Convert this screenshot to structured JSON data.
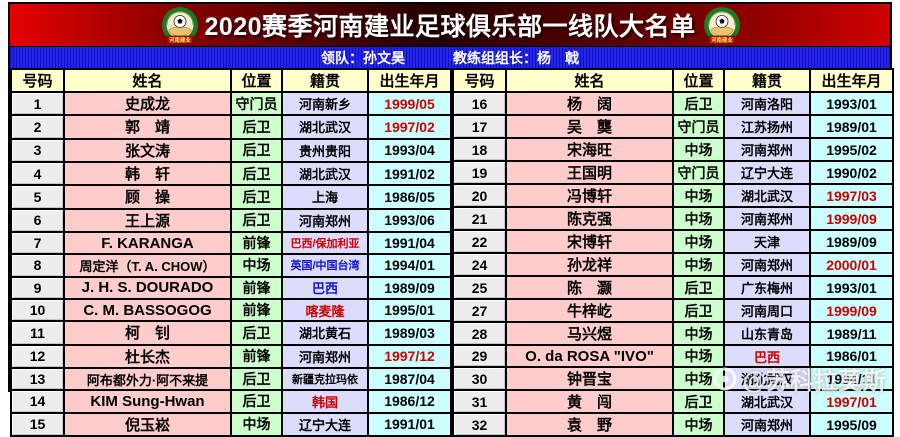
{
  "header": {
    "title": "2020赛季河南建业足球俱乐部一线队大名单",
    "leader": "领队：孙文昊",
    "coach": "教练组组长：杨　戟"
  },
  "logo": {
    "banner": "河南建业"
  },
  "watermark": {
    "text": "@苏科拉莫斯"
  },
  "colors": {
    "bar_red": "#cc0000",
    "bar_blue": "#1616d6",
    "header_bg": "#ffffcc",
    "name_bg": "#ffcccc",
    "position_bg": "#ccffcc",
    "origin_bg": "#dcdcff",
    "birth_bg": "#ccffff",
    "highlight_red": "#cc0000",
    "highlight_blue": "#1111cc"
  },
  "table": {
    "columns": [
      "号码",
      "姓名",
      "位置",
      "籍贯",
      "出生年月"
    ]
  },
  "roster": {
    "left": [
      {
        "num": "1",
        "name": "史成龙",
        "pos": "守门员",
        "origin": "河南新乡",
        "birth": "1999/05",
        "birth_color": "red"
      },
      {
        "num": "2",
        "name": "郭　靖",
        "pos": "后卫",
        "origin": "湖北武汉",
        "birth": "1997/02",
        "birth_color": "red"
      },
      {
        "num": "3",
        "name": "张文涛",
        "pos": "后卫",
        "origin": "贵州贵阳",
        "birth": "1993/04"
      },
      {
        "num": "4",
        "name": "韩　轩",
        "pos": "后卫",
        "origin": "湖北武汉",
        "birth": "1991/02"
      },
      {
        "num": "5",
        "name": "顾　操",
        "pos": "后卫",
        "origin": "上海",
        "birth": "1986/05"
      },
      {
        "num": "6",
        "name": "王上源",
        "pos": "后卫",
        "origin": "河南郑州",
        "birth": "1993/06"
      },
      {
        "num": "7",
        "name": "F. KARANGA",
        "pos": "前锋",
        "origin": "巴西/保加利亚",
        "origin_color": "red",
        "birth": "1991/04"
      },
      {
        "num": "8",
        "name": "周定洋（T. A. CHOW）",
        "pos": "中场",
        "origin": "英国/中国台湾",
        "origin_color": "blue",
        "birth": "1994/01"
      },
      {
        "num": "9",
        "name": "J. H. S. DOURADO",
        "pos": "前锋",
        "origin": "巴西",
        "origin_color": "blue",
        "birth": "1989/09"
      },
      {
        "num": "10",
        "name": "C. M. BASSOGOG",
        "pos": "前锋",
        "origin": "喀麦隆",
        "origin_color": "red",
        "birth": "1995/01"
      },
      {
        "num": "11",
        "name": "柯　钊",
        "pos": "后卫",
        "origin": "湖北黄石",
        "birth": "1989/03"
      },
      {
        "num": "12",
        "name": "杜长杰",
        "pos": "前锋",
        "origin": "河南郑州",
        "birth": "1997/12",
        "birth_color": "red"
      },
      {
        "num": "13",
        "name": "阿布都外力·阿不来提",
        "pos": "后卫",
        "origin": "新疆克拉玛依",
        "birth": "1987/04"
      },
      {
        "num": "14",
        "name": "KIM Sung-Hwan",
        "pos": "后卫",
        "origin": "韩国",
        "origin_color": "red",
        "birth": "1986/12"
      },
      {
        "num": "15",
        "name": "倪玉崧",
        "pos": "中场",
        "origin": "辽宁大连",
        "birth": "1991/01"
      }
    ],
    "right": [
      {
        "num": "16",
        "name": "杨　阔",
        "pos": "后卫",
        "origin": "河南洛阳",
        "birth": "1993/01"
      },
      {
        "num": "17",
        "name": "吴　龑",
        "pos": "守门员",
        "origin": "江苏扬州",
        "birth": "1989/01"
      },
      {
        "num": "18",
        "name": "宋海旺",
        "pos": "中场",
        "origin": "河南郑州",
        "birth": "1995/02"
      },
      {
        "num": "19",
        "name": "王国明",
        "pos": "守门员",
        "origin": "辽宁大连",
        "birth": "1990/02"
      },
      {
        "num": "20",
        "name": "冯博轩",
        "pos": "中场",
        "origin": "湖北武汉",
        "birth": "1997/03",
        "birth_color": "red"
      },
      {
        "num": "21",
        "name": "陈克强",
        "pos": "中场",
        "origin": "河南郑州",
        "birth": "1999/09",
        "birth_color": "red"
      },
      {
        "num": "22",
        "name": "宋博轩",
        "pos": "中场",
        "origin": "天津",
        "birth": "1989/09"
      },
      {
        "num": "24",
        "name": "孙龙祥",
        "pos": "中场",
        "origin": "河南郑州",
        "birth": "2000/01",
        "birth_color": "red"
      },
      {
        "num": "25",
        "name": "陈　灏",
        "pos": "后卫",
        "origin": "广东梅州",
        "birth": "1993/01"
      },
      {
        "num": "27",
        "name": "牛梓屹",
        "pos": "后卫",
        "origin": "河南周口",
        "birth": "1999/09",
        "birth_color": "red"
      },
      {
        "num": "28",
        "name": "马兴煜",
        "pos": "中场",
        "origin": "山东青岛",
        "birth": "1989/11"
      },
      {
        "num": "29",
        "name": "O. da ROSA \"IVO\"",
        "pos": "中场",
        "origin": "巴西",
        "origin_color": "red",
        "birth": "1986/01"
      },
      {
        "num": "30",
        "name": "钟晋宝",
        "pos": "中场",
        "origin": "湖北武汉",
        "birth": "1994/11"
      },
      {
        "num": "31",
        "name": "黄　闯",
        "pos": "后卫",
        "origin": "湖北武汉",
        "birth": "1997/01",
        "birth_color": "red"
      },
      {
        "num": "32",
        "name": "袁　野",
        "pos": "中场",
        "origin": "河南郑州",
        "birth": "1995/09"
      }
    ]
  }
}
